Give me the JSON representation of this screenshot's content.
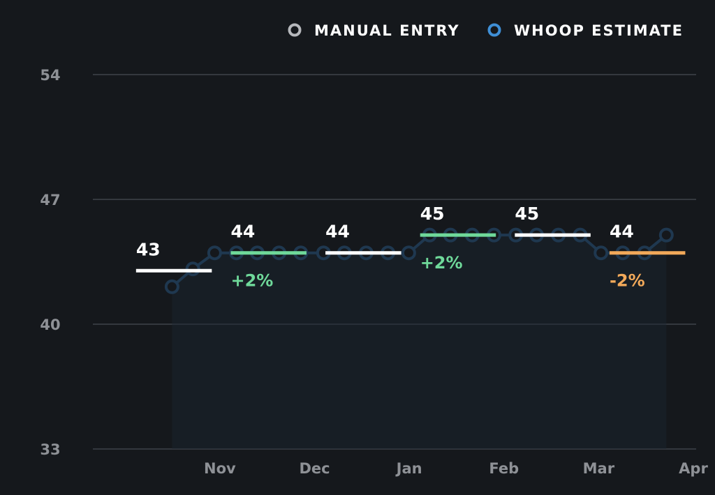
{
  "legend": {
    "manual_entry": "MANUAL ENTRY",
    "whoop_estimate": "WHOOP ESTIMATE"
  },
  "colors": {
    "background": "#15181c",
    "grid": "#34383e",
    "tick_text": "#8e9196",
    "manual_marker": "#b6b8bc",
    "estimate_marker": "#3f8fd6",
    "estimate_line": "#1f3850",
    "flat_segment": "#ffffff",
    "increase": "#6fd99a",
    "decrease": "#f2a95a"
  },
  "chart_data": {
    "type": "line",
    "yticks": [
      54,
      47,
      40,
      33
    ],
    "ylim": [
      33,
      54
    ],
    "xticks": [
      {
        "label": "Nov",
        "x": 1
      },
      {
        "label": "Dec",
        "x": 2
      },
      {
        "label": "Jan",
        "x": 3
      },
      {
        "label": "Feb",
        "x": 4
      },
      {
        "label": "Mar",
        "x": 5
      },
      {
        "label": "Apr",
        "x": 6
      }
    ],
    "xlim": [
      -0.12,
      6.0
    ],
    "series": [
      {
        "name": "WHOOP ESTIMATE",
        "points": [
          {
            "x": 0.48,
            "y": 42.1
          },
          {
            "x": 0.7,
            "y": 43.1
          },
          {
            "x": 0.93,
            "y": 44.0
          },
          {
            "x": 1.16,
            "y": 44.0
          },
          {
            "x": 1.38,
            "y": 44.0
          },
          {
            "x": 1.61,
            "y": 44.0
          },
          {
            "x": 1.84,
            "y": 44.0
          },
          {
            "x": 2.08,
            "y": 44.0
          },
          {
            "x": 2.3,
            "y": 44.0
          },
          {
            "x": 2.53,
            "y": 44.0
          },
          {
            "x": 2.76,
            "y": 44.0
          },
          {
            "x": 2.98,
            "y": 44.0
          },
          {
            "x": 3.2,
            "y": 45.0
          },
          {
            "x": 3.42,
            "y": 45.0
          },
          {
            "x": 3.65,
            "y": 45.0
          },
          {
            "x": 3.88,
            "y": 45.0
          },
          {
            "x": 4.11,
            "y": 45.0
          },
          {
            "x": 4.33,
            "y": 45.0
          },
          {
            "x": 4.56,
            "y": 45.0
          },
          {
            "x": 4.79,
            "y": 45.0
          },
          {
            "x": 5.01,
            "y": 44.0
          },
          {
            "x": 5.24,
            "y": 44.0
          },
          {
            "x": 5.47,
            "y": 44.0
          },
          {
            "x": 5.7,
            "y": 45.0
          }
        ]
      }
    ],
    "monthly_averages": [
      {
        "x0": 0.1,
        "x1": 0.9,
        "value": 43,
        "label": "43",
        "change": "",
        "trend": "flat"
      },
      {
        "x0": 1.1,
        "x1": 1.9,
        "value": 44,
        "label": "44",
        "change": "+2%",
        "trend": "up"
      },
      {
        "x0": 2.1,
        "x1": 2.9,
        "value": 44,
        "label": "44",
        "change": "",
        "trend": "flat"
      },
      {
        "x0": 3.1,
        "x1": 3.9,
        "value": 45,
        "label": "45",
        "change": "+2%",
        "trend": "up"
      },
      {
        "x0": 4.1,
        "x1": 4.9,
        "value": 45,
        "label": "45",
        "change": "",
        "trend": "flat"
      },
      {
        "x0": 5.1,
        "x1": 5.9,
        "value": 44,
        "label": "44",
        "change": "-2%",
        "trend": "down"
      }
    ]
  }
}
